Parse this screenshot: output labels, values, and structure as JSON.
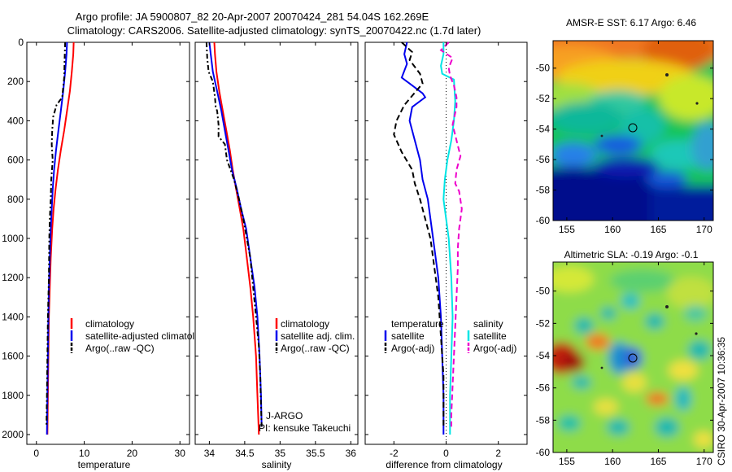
{
  "header": {
    "line1": "Argo profile: JA 5900807_82 20-Apr-2007 20070424_281 54.04S 162.269E",
    "line2": "Climatology: CARS2006. Satellite-adjusted climatology: synTS_20070422.nc (1.7d later)"
  },
  "credit": "CSIRO 30-Apr-2007 10:36:35",
  "chart_data": [
    {
      "type": "line",
      "name": "temperature",
      "xlabel": "temperature",
      "xlim": [
        -2,
        32
      ],
      "ylim": [
        0,
        2050
      ],
      "xticks": [
        "0",
        "10",
        "20",
        "30"
      ],
      "xtick_values": [
        0,
        10,
        20,
        30
      ],
      "yticks": [
        "0",
        "200",
        "400",
        "600",
        "800",
        "1000",
        "1200",
        "1400",
        "1600",
        "1800",
        "2000"
      ],
      "ytick_values": [
        0,
        200,
        400,
        600,
        800,
        1000,
        1200,
        1400,
        1600,
        1800,
        2000
      ],
      "legend": [
        "climatology",
        "satellite-adjusted climatology",
        "Argo(..raw -QC)"
      ],
      "series": [
        {
          "name": "climatology",
          "color": "#ff0000",
          "dash": "",
          "points": [
            [
              7.8,
              0
            ],
            [
              7.7,
              60
            ],
            [
              7.4,
              150
            ],
            [
              7.0,
              250
            ],
            [
              6.4,
              350
            ],
            [
              5.8,
              450
            ],
            [
              5.1,
              550
            ],
            [
              4.5,
              650
            ],
            [
              4.0,
              750
            ],
            [
              3.6,
              850
            ],
            [
              3.3,
              950
            ],
            [
              3.0,
              1100
            ],
            [
              2.8,
              1250
            ],
            [
              2.6,
              1400
            ],
            [
              2.5,
              1600
            ],
            [
              2.4,
              1800
            ],
            [
              2.3,
              2000
            ]
          ]
        },
        {
          "name": "satellite-adjusted climatology",
          "color": "#0000ee",
          "dash": "",
          "points": [
            [
              6.4,
              0
            ],
            [
              6.3,
              60
            ],
            [
              6.0,
              150
            ],
            [
              5.6,
              250
            ],
            [
              5.1,
              350
            ],
            [
              4.6,
              450
            ],
            [
              4.1,
              550
            ],
            [
              3.7,
              650
            ],
            [
              3.4,
              750
            ],
            [
              3.2,
              850
            ],
            [
              3.0,
              950
            ],
            [
              2.8,
              1100
            ],
            [
              2.6,
              1250
            ],
            [
              2.5,
              1400
            ],
            [
              2.4,
              1600
            ],
            [
              2.3,
              1800
            ],
            [
              2.2,
              2000
            ]
          ]
        },
        {
          "name": "Argo(..raw -QC)",
          "color": "#000000",
          "dash": "6,3,2,3",
          "points": [
            [
              6.0,
              0
            ],
            [
              5.9,
              80
            ],
            [
              5.8,
              180
            ],
            [
              5.4,
              280
            ],
            [
              4.2,
              320
            ],
            [
              3.5,
              380
            ],
            [
              3.3,
              450
            ],
            [
              3.2,
              520
            ],
            [
              3.4,
              600
            ],
            [
              3.1,
              700
            ],
            [
              3.0,
              800
            ],
            [
              2.8,
              900
            ],
            [
              2.7,
              1000
            ],
            [
              2.6,
              1200
            ],
            [
              2.4,
              1400
            ],
            [
              2.3,
              1600
            ],
            [
              2.2,
              1800
            ],
            [
              2.1,
              1960
            ]
          ]
        }
      ]
    },
    {
      "type": "line",
      "name": "salinity",
      "xlabel": "salinity",
      "xlim": [
        33.8,
        36.1
      ],
      "ylim": [
        0,
        2050
      ],
      "xticks": [
        "34",
        "34.5",
        "35",
        "35.5",
        "36"
      ],
      "xtick_values": [
        34,
        34.5,
        35,
        35.5,
        36
      ],
      "legend": [
        "climatology",
        "satellite adj. clim.",
        "Argo(..raw -QC)"
      ],
      "annotation": [
        "J-ARGO",
        "PI: kensuke Takeuchi"
      ],
      "series": [
        {
          "name": "climatology",
          "color": "#ff0000",
          "dash": "",
          "points": [
            [
              34.07,
              0
            ],
            [
              34.08,
              60
            ],
            [
              34.1,
              150
            ],
            [
              34.14,
              250
            ],
            [
              34.19,
              350
            ],
            [
              34.24,
              450
            ],
            [
              34.29,
              550
            ],
            [
              34.33,
              650
            ],
            [
              34.38,
              750
            ],
            [
              34.43,
              850
            ],
            [
              34.48,
              950
            ],
            [
              34.53,
              1100
            ],
            [
              34.58,
              1250
            ],
            [
              34.62,
              1400
            ],
            [
              34.66,
              1600
            ],
            [
              34.68,
              1800
            ],
            [
              34.7,
              2000
            ]
          ]
        },
        {
          "name": "satellite adj. clim.",
          "color": "#0000ee",
          "dash": "",
          "points": [
            [
              34.0,
              0
            ],
            [
              34.02,
              60
            ],
            [
              34.05,
              150
            ],
            [
              34.11,
              250
            ],
            [
              34.17,
              350
            ],
            [
              34.22,
              450
            ],
            [
              34.27,
              550
            ],
            [
              34.32,
              650
            ],
            [
              34.39,
              750
            ],
            [
              34.45,
              850
            ],
            [
              34.52,
              950
            ],
            [
              34.58,
              1100
            ],
            [
              34.64,
              1250
            ],
            [
              34.68,
              1400
            ],
            [
              34.71,
              1600
            ],
            [
              34.73,
              1800
            ],
            [
              34.74,
              1960
            ]
          ]
        },
        {
          "name": "Argo(..raw -QC)",
          "color": "#000000",
          "dash": "6,3,2,3",
          "points": [
            [
              33.96,
              0
            ],
            [
              33.97,
              80
            ],
            [
              33.99,
              150
            ],
            [
              34.05,
              200
            ],
            [
              34.08,
              280
            ],
            [
              34.09,
              330
            ],
            [
              34.11,
              350
            ],
            [
              34.13,
              420
            ],
            [
              34.13,
              480
            ],
            [
              34.22,
              520
            ],
            [
              34.25,
              600
            ],
            [
              34.35,
              700
            ],
            [
              34.42,
              800
            ],
            [
              34.48,
              900
            ],
            [
              34.53,
              1000
            ],
            [
              34.58,
              1100
            ],
            [
              34.62,
              1250
            ],
            [
              34.66,
              1400
            ],
            [
              34.7,
              1550
            ],
            [
              34.72,
              1700
            ],
            [
              34.73,
              1850
            ],
            [
              34.74,
              1960
            ]
          ]
        }
      ]
    },
    {
      "type": "line",
      "name": "difference from climatology",
      "xlabel": "difference from climatology",
      "xlim": [
        -3.1,
        3.1
      ],
      "ylim": [
        0,
        2050
      ],
      "xticks": [
        "-2",
        "0",
        "2"
      ],
      "xtick_values": [
        -2,
        0,
        2
      ],
      "legend_left": {
        "title": "temperature",
        "items": [
          "satellite",
          "Argo(-adj)"
        ]
      },
      "legend_right": {
        "title": "salinity",
        "items": [
          "satellite",
          "Argo(-adj)"
        ]
      },
      "series": [
        {
          "name": "temperature satellite",
          "color": "#0000ee",
          "dash": "",
          "points": [
            [
              -1.5,
              0
            ],
            [
              -1.6,
              60
            ],
            [
              -1.5,
              110
            ],
            [
              -1.7,
              180
            ],
            [
              -1.2,
              230
            ],
            [
              -0.9,
              260
            ],
            [
              -0.8,
              280
            ],
            [
              -1.3,
              330
            ],
            [
              -1.4,
              400
            ],
            [
              -1.2,
              500
            ],
            [
              -1.0,
              600
            ],
            [
              -0.9,
              700
            ],
            [
              -0.7,
              800
            ],
            [
              -0.5,
              1000
            ],
            [
              -0.3,
              1200
            ],
            [
              -0.2,
              1400
            ],
            [
              -0.15,
              1600
            ],
            [
              -0.1,
              1800
            ],
            [
              -0.1,
              2000
            ]
          ]
        },
        {
          "name": "temperature Argo(-adj)",
          "color": "#000000",
          "dash": "7,4",
          "points": [
            [
              -1.7,
              0
            ],
            [
              -1.3,
              50
            ],
            [
              -1.4,
              90
            ],
            [
              -1.0,
              160
            ],
            [
              -0.9,
              210
            ],
            [
              -1.6,
              320
            ],
            [
              -1.9,
              400
            ],
            [
              -2.0,
              470
            ],
            [
              -1.7,
              560
            ],
            [
              -1.3,
              650
            ],
            [
              -1.2,
              720
            ],
            [
              -1.0,
              800
            ],
            [
              -0.8,
              900
            ],
            [
              -0.6,
              1000
            ],
            [
              -0.5,
              1100
            ],
            [
              -0.3,
              1300
            ],
            [
              -0.2,
              1500
            ],
            [
              -0.1,
              1700
            ],
            [
              -0.1,
              1960
            ]
          ]
        },
        {
          "name": "salinity satellite",
          "color": "#00e5e5",
          "dash": "",
          "points": [
            [
              -0.1,
              0
            ],
            [
              -0.1,
              60
            ],
            [
              -0.2,
              120
            ],
            [
              -0.15,
              160
            ],
            [
              0.3,
              190
            ],
            [
              0.35,
              300
            ],
            [
              0.3,
              400
            ],
            [
              0.2,
              500
            ],
            [
              0.05,
              600
            ],
            [
              -0.05,
              700
            ],
            [
              -0.1,
              800
            ],
            [
              0.0,
              900
            ],
            [
              0.1,
              1000
            ],
            [
              0.2,
              1200
            ],
            [
              0.25,
              1400
            ],
            [
              0.2,
              1600
            ],
            [
              0.15,
              1800
            ],
            [
              0.15,
              2000
            ]
          ]
        },
        {
          "name": "salinity Argo(-adj)",
          "color": "#ee00cc",
          "dash": "7,4",
          "points": [
            [
              0.1,
              0
            ],
            [
              -0.2,
              40
            ],
            [
              0.25,
              80
            ],
            [
              0.1,
              130
            ],
            [
              0.15,
              170
            ],
            [
              0.3,
              220
            ],
            [
              0.4,
              280
            ],
            [
              0.4,
              330
            ],
            [
              0.25,
              420
            ],
            [
              0.4,
              500
            ],
            [
              0.55,
              580
            ],
            [
              0.4,
              650
            ],
            [
              0.35,
              720
            ],
            [
              0.5,
              760
            ],
            [
              0.6,
              850
            ],
            [
              0.5,
              950
            ],
            [
              0.45,
              1050
            ],
            [
              0.45,
              1150
            ],
            [
              0.4,
              1300
            ],
            [
              0.35,
              1450
            ],
            [
              0.3,
              1600
            ],
            [
              0.25,
              1750
            ],
            [
              0.2,
              1900
            ],
            [
              0.2,
              1960
            ]
          ]
        }
      ]
    },
    {
      "type": "heatmap",
      "name": "sst-map",
      "title": "AMSR-E SST: 6.17 Argo: 6.46",
      "xlim": [
        153.5,
        171
      ],
      "ylim": [
        -60,
        -48.2
      ],
      "xticks": [
        "155",
        "160",
        "165",
        "170"
      ],
      "xtick_values": [
        155,
        160,
        165,
        170
      ],
      "yticks": [
        "-50",
        "-52",
        "-54",
        "-56",
        "-58",
        "-60"
      ],
      "ytick_values": [
        -50,
        -52,
        -54,
        -56,
        -58,
        -60
      ],
      "float_position": [
        162.269,
        -54.04
      ]
    },
    {
      "type": "heatmap",
      "name": "sla-map",
      "title": "Altimetric SLA: -0.19 Argo: -0.1",
      "xlim": [
        153.5,
        171
      ],
      "ylim": [
        -60,
        -48.2
      ],
      "xticks": [
        "155",
        "160",
        "165",
        "170"
      ],
      "xtick_values": [
        155,
        160,
        165,
        170
      ],
      "yticks": [
        "-50",
        "-52",
        "-54",
        "-56",
        "-58",
        "-60"
      ],
      "ytick_values": [
        -50,
        -52,
        -54,
        -56,
        -58,
        -60
      ],
      "float_position": [
        162.269,
        -54.04
      ]
    }
  ]
}
